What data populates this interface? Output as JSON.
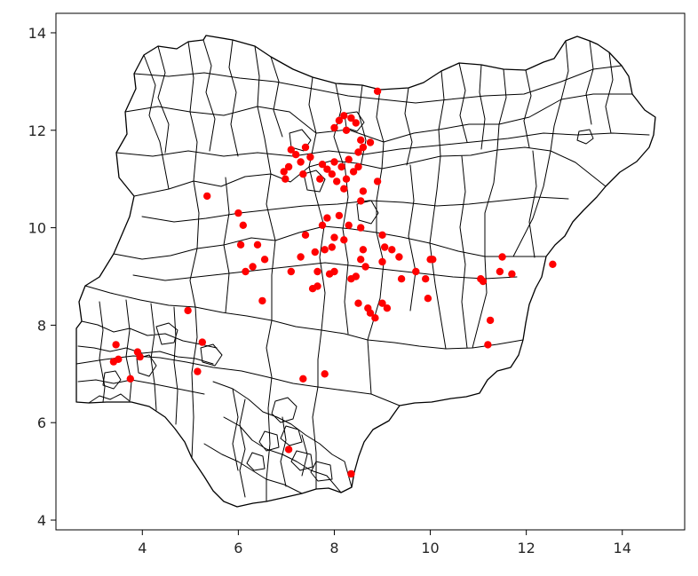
{
  "chart_data": {
    "type": "scatter",
    "title": "",
    "xlabel": "",
    "ylabel": "",
    "xlim": [
      2.2,
      15.3
    ],
    "ylim": [
      3.8,
      14.4
    ],
    "x_ticks": [
      4,
      6,
      8,
      10,
      12,
      14
    ],
    "y_ticks": [
      4,
      6,
      8,
      10,
      12,
      14
    ],
    "x_tick_labels": [
      "4",
      "6",
      "8",
      "10",
      "12",
      "14"
    ],
    "y_tick_labels": [
      "4",
      "6",
      "8",
      "10",
      "12",
      "14"
    ],
    "grid": false,
    "legend": "none",
    "background_layer": "Nigeria local government area boundaries",
    "point_color": "#ff0000",
    "boundary_color": "#000000",
    "points": [
      {
        "x": 8.2,
        "y": 12.3
      },
      {
        "x": 8.35,
        "y": 12.25
      },
      {
        "x": 8.1,
        "y": 12.2
      },
      {
        "x": 8.45,
        "y": 12.15
      },
      {
        "x": 8.25,
        "y": 12.0
      },
      {
        "x": 8.0,
        "y": 12.05
      },
      {
        "x": 8.9,
        "y": 12.8
      },
      {
        "x": 8.55,
        "y": 11.8
      },
      {
        "x": 8.6,
        "y": 11.65
      },
      {
        "x": 8.5,
        "y": 11.55
      },
      {
        "x": 8.75,
        "y": 11.75
      },
      {
        "x": 7.1,
        "y": 11.6
      },
      {
        "x": 7.2,
        "y": 11.5
      },
      {
        "x": 7.3,
        "y": 11.35
      },
      {
        "x": 7.4,
        "y": 11.65
      },
      {
        "x": 7.5,
        "y": 11.45
      },
      {
        "x": 7.05,
        "y": 11.25
      },
      {
        "x": 7.35,
        "y": 11.1
      },
      {
        "x": 6.95,
        "y": 11.15
      },
      {
        "x": 6.98,
        "y": 11.0
      },
      {
        "x": 8.0,
        "y": 11.35
      },
      {
        "x": 8.15,
        "y": 11.25
      },
      {
        "x": 8.3,
        "y": 11.4
      },
      {
        "x": 7.95,
        "y": 11.1
      },
      {
        "x": 8.05,
        "y": 10.95
      },
      {
        "x": 8.25,
        "y": 11.0
      },
      {
        "x": 8.4,
        "y": 11.15
      },
      {
        "x": 8.5,
        "y": 11.25
      },
      {
        "x": 7.7,
        "y": 11.0
      },
      {
        "x": 7.85,
        "y": 11.2
      },
      {
        "x": 8.2,
        "y": 10.8
      },
      {
        "x": 7.75,
        "y": 11.3
      },
      {
        "x": 8.6,
        "y": 10.75
      },
      {
        "x": 8.55,
        "y": 10.55
      },
      {
        "x": 8.9,
        "y": 10.95
      },
      {
        "x": 5.35,
        "y": 10.65
      },
      {
        "x": 6.0,
        "y": 10.3
      },
      {
        "x": 6.1,
        "y": 10.05
      },
      {
        "x": 6.05,
        "y": 9.65
      },
      {
        "x": 6.15,
        "y": 9.1
      },
      {
        "x": 6.3,
        "y": 9.2
      },
      {
        "x": 6.4,
        "y": 9.65
      },
      {
        "x": 6.55,
        "y": 9.35
      },
      {
        "x": 6.5,
        "y": 8.5
      },
      {
        "x": 7.1,
        "y": 9.1
      },
      {
        "x": 7.3,
        "y": 9.4
      },
      {
        "x": 7.4,
        "y": 9.85
      },
      {
        "x": 7.6,
        "y": 9.5
      },
      {
        "x": 7.8,
        "y": 9.55
      },
      {
        "x": 7.75,
        "y": 10.05
      },
      {
        "x": 7.85,
        "y": 10.2
      },
      {
        "x": 8.0,
        "y": 9.8
      },
      {
        "x": 7.95,
        "y": 9.6
      },
      {
        "x": 8.2,
        "y": 9.75
      },
      {
        "x": 8.3,
        "y": 10.05
      },
      {
        "x": 8.1,
        "y": 10.25
      },
      {
        "x": 7.65,
        "y": 9.1
      },
      {
        "x": 7.9,
        "y": 9.05
      },
      {
        "x": 8.0,
        "y": 9.1
      },
      {
        "x": 7.65,
        "y": 8.8
      },
      {
        "x": 7.55,
        "y": 8.75
      },
      {
        "x": 8.35,
        "y": 8.95
      },
      {
        "x": 8.45,
        "y": 9.0
      },
      {
        "x": 8.55,
        "y": 9.35
      },
      {
        "x": 8.6,
        "y": 9.55
      },
      {
        "x": 8.65,
        "y": 9.2
      },
      {
        "x": 8.55,
        "y": 10.0
      },
      {
        "x": 8.5,
        "y": 8.45
      },
      {
        "x": 8.7,
        "y": 8.35
      },
      {
        "x": 8.75,
        "y": 8.25
      },
      {
        "x": 8.85,
        "y": 8.15
      },
      {
        "x": 9.0,
        "y": 8.45
      },
      {
        "x": 9.1,
        "y": 8.35
      },
      {
        "x": 9.0,
        "y": 9.3
      },
      {
        "x": 9.05,
        "y": 9.6
      },
      {
        "x": 9.0,
        "y": 9.85
      },
      {
        "x": 9.2,
        "y": 9.55
      },
      {
        "x": 9.35,
        "y": 9.4
      },
      {
        "x": 9.4,
        "y": 8.95
      },
      {
        "x": 9.7,
        "y": 9.1
      },
      {
        "x": 9.9,
        "y": 8.95
      },
      {
        "x": 9.95,
        "y": 8.55
      },
      {
        "x": 10.0,
        "y": 9.35
      },
      {
        "x": 10.05,
        "y": 9.35
      },
      {
        "x": 11.05,
        "y": 8.95
      },
      {
        "x": 11.1,
        "y": 8.9
      },
      {
        "x": 11.45,
        "y": 9.1
      },
      {
        "x": 11.5,
        "y": 9.4
      },
      {
        "x": 11.7,
        "y": 9.05
      },
      {
        "x": 12.55,
        "y": 9.25
      },
      {
        "x": 11.25,
        "y": 8.1
      },
      {
        "x": 11.2,
        "y": 7.6
      },
      {
        "x": 3.45,
        "y": 7.6
      },
      {
        "x": 3.5,
        "y": 7.3
      },
      {
        "x": 3.4,
        "y": 7.25
      },
      {
        "x": 3.9,
        "y": 7.45
      },
      {
        "x": 3.95,
        "y": 7.35
      },
      {
        "x": 3.75,
        "y": 6.9
      },
      {
        "x": 4.95,
        "y": 8.3
      },
      {
        "x": 5.25,
        "y": 7.65
      },
      {
        "x": 5.15,
        "y": 7.05
      },
      {
        "x": 7.05,
        "y": 5.45
      },
      {
        "x": 7.35,
        "y": 6.9
      },
      {
        "x": 7.8,
        "y": 7.0
      },
      {
        "x": 8.35,
        "y": 4.95
      }
    ]
  }
}
